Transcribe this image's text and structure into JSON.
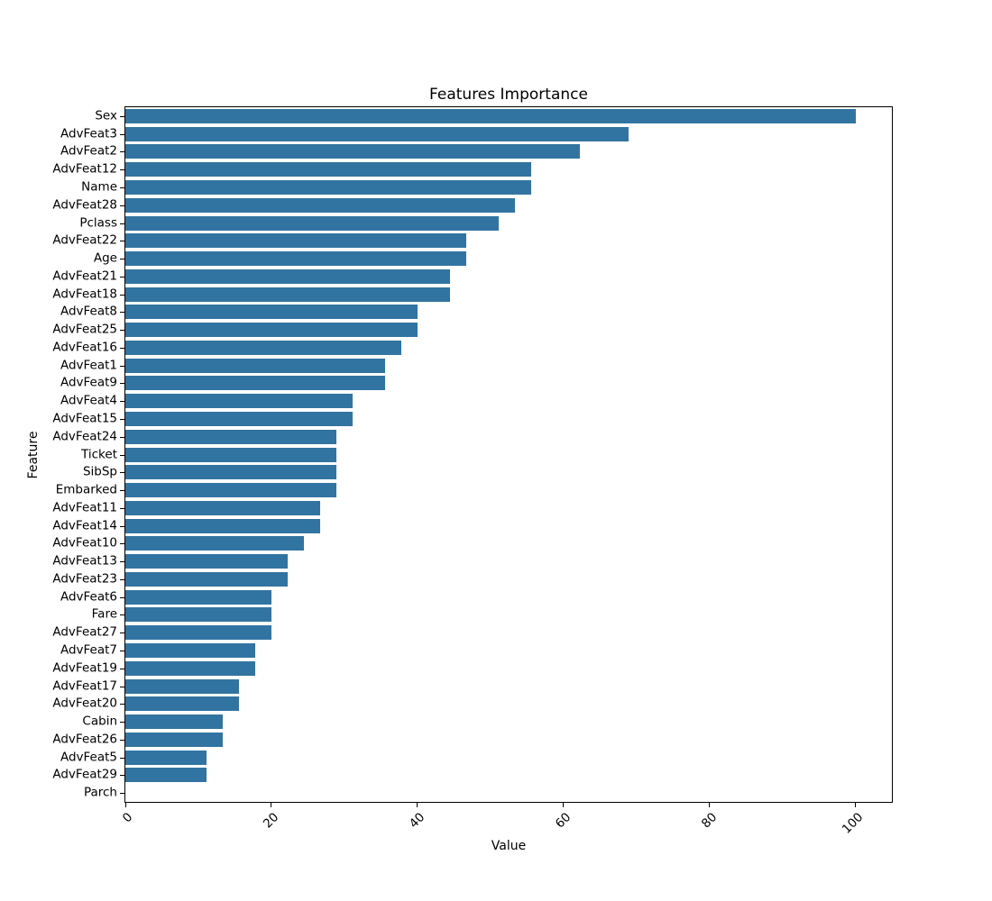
{
  "chart_data": {
    "type": "bar",
    "orientation": "horizontal",
    "title": "Features Importance",
    "xlabel": "Value",
    "ylabel": "Feature",
    "bar_color": "#3274a1",
    "grid": false,
    "xlim": [
      0,
      105
    ],
    "x_ticks": [
      0,
      20,
      40,
      60,
      80,
      100
    ],
    "x_tick_rotation_deg": 45,
    "categories": [
      "Sex",
      "AdvFeat3",
      "AdvFeat2",
      "AdvFeat12",
      "Name",
      "AdvFeat28",
      "Pclass",
      "AdvFeat22",
      "Age",
      "AdvFeat21",
      "AdvFeat18",
      "AdvFeat8",
      "AdvFeat25",
      "AdvFeat16",
      "AdvFeat1",
      "AdvFeat9",
      "AdvFeat4",
      "AdvFeat15",
      "AdvFeat24",
      "Ticket",
      "SibSp",
      "Embarked",
      "AdvFeat11",
      "AdvFeat14",
      "AdvFeat10",
      "AdvFeat13",
      "AdvFeat23",
      "AdvFeat6",
      "Fare",
      "AdvFeat27",
      "AdvFeat7",
      "AdvFeat19",
      "AdvFeat17",
      "AdvFeat20",
      "Cabin",
      "AdvFeat26",
      "AdvFeat5",
      "AdvFeat29",
      "Parch"
    ],
    "values": [
      100,
      68.89,
      62.22,
      55.56,
      55.56,
      53.33,
      51.11,
      46.67,
      46.67,
      44.44,
      44.44,
      40,
      40,
      37.78,
      35.56,
      35.56,
      31.11,
      31.11,
      28.89,
      28.89,
      28.89,
      28.89,
      26.67,
      26.67,
      24.44,
      22.22,
      22.22,
      20,
      20,
      20,
      17.78,
      17.78,
      15.56,
      15.56,
      13.33,
      13.33,
      11.11,
      11.11,
      0
    ]
  }
}
